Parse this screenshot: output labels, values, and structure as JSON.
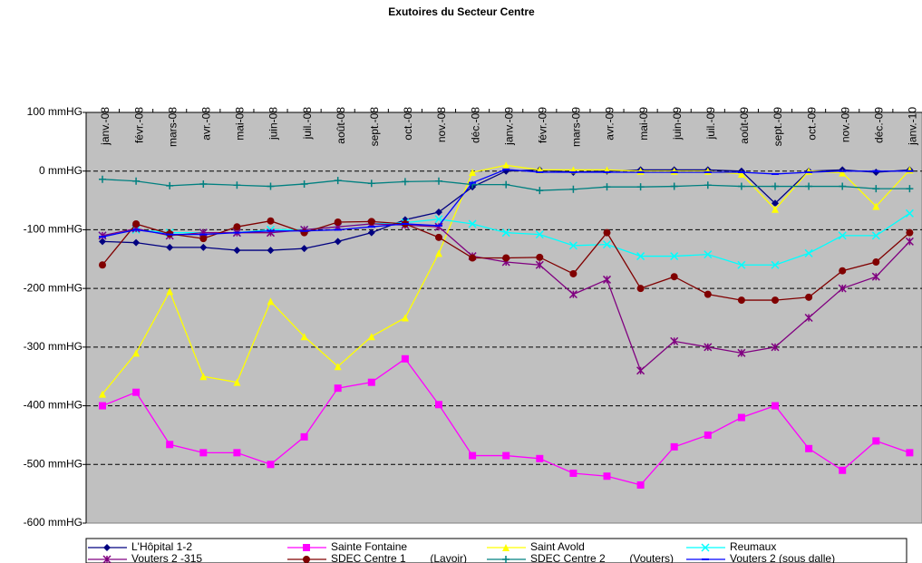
{
  "chart_data": {
    "type": "line",
    "title": "Exutoires du Secteur Centre",
    "categories": [
      "janv.-08",
      "févr.-08",
      "mars-08",
      "avr.-08",
      "mai-08",
      "juin-08",
      "juil.-08",
      "août-08",
      "sept.-08",
      "oct.-08",
      "nov.-08",
      "déc.-08",
      "janv.-09",
      "févr.-09",
      "mars-09",
      "avr.-09",
      "mai-09",
      "juin-09",
      "juil.-09",
      "août-09",
      "sept.-09",
      "oct.-09",
      "nov.-09",
      "déc.-09",
      "janv.-10"
    ],
    "ylim": [
      -600,
      100
    ],
    "yticks": [
      {
        "value": -600,
        "label": "-600 mmHG"
      },
      {
        "value": -500,
        "label": "-500 mmHG"
      },
      {
        "value": -400,
        "label": "-400 mmHG"
      },
      {
        "value": -300,
        "label": "-300 mmHG"
      },
      {
        "value": -200,
        "label": "-200 mmHG"
      },
      {
        "value": -100,
        "label": "-100 mmHG"
      },
      {
        "value": 0,
        "label": "0 mmHG"
      },
      {
        "value": 100,
        "label": "100 mmHG"
      }
    ],
    "grid": true,
    "legend": "bottom",
    "series": [
      {
        "name": "L'Hôpital 1-2",
        "color": "#000080",
        "marker": "diamond",
        "values": [
          -120,
          -122,
          -130,
          -130,
          -135,
          -135,
          -132,
          -120,
          -105,
          -83,
          -70,
          -27,
          0,
          2,
          -2,
          0,
          2,
          2,
          2,
          0,
          -55,
          0,
          2,
          -2,
          2
        ]
      },
      {
        "name": "Sainte Fontaine",
        "color": "#ff00ff",
        "marker": "square",
        "values": [
          -400,
          -377,
          -466,
          -480,
          -480,
          -500,
          -453,
          -370,
          -360,
          -320,
          -398,
          -485,
          -485,
          -490,
          -515,
          -520,
          -535,
          -470,
          -450,
          -420,
          -400,
          -473,
          -510,
          -460,
          -480
        ]
      },
      {
        "name": "Saint Avold",
        "color": "#ffff00",
        "marker": "triangle",
        "values": [
          -380,
          -310,
          -205,
          -350,
          -360,
          -222,
          -282,
          -333,
          -282,
          -250,
          -140,
          -2,
          10,
          2,
          2,
          2,
          0,
          0,
          0,
          -5,
          -65,
          0,
          -3,
          -60,
          2
        ]
      },
      {
        "name": "Reumaux",
        "color": "#00ffff",
        "marker": "x",
        "values": [
          -110,
          -100,
          -105,
          -105,
          -105,
          -100,
          -100,
          -95,
          -90,
          -88,
          -82,
          -90,
          -105,
          -108,
          -127,
          -125,
          -145,
          -145,
          -142,
          -160,
          -160,
          -140,
          -110,
          -110,
          -72
        ]
      },
      {
        "name": "Vouters 2 -315",
        "color": "#800080",
        "marker": "star",
        "values": [
          -110,
          -98,
          -110,
          -105,
          -105,
          -105,
          -100,
          -95,
          -90,
          -92,
          -95,
          -145,
          -155,
          -160,
          -210,
          -185,
          -340,
          -290,
          -300,
          -310,
          -300,
          -250,
          -200,
          -180,
          -120
        ]
      },
      {
        "name": "SDEC Centre 1        (Lavoir)",
        "color": "#800000",
        "marker": "circle",
        "values": [
          -160,
          -90,
          -107,
          -115,
          -95,
          -85,
          -105,
          -87,
          -86,
          -90,
          -113,
          -148,
          -148,
          -147,
          -175,
          -105,
          -200,
          -180,
          -210,
          -220,
          -220,
          -215,
          -170,
          -155,
          -105
        ]
      },
      {
        "name": "SDEC Centre 2        (Vouters)",
        "color": "#008080",
        "marker": "plus",
        "values": [
          -14,
          -17,
          -25,
          -22,
          -24,
          -26,
          -22,
          -16,
          -21,
          -18,
          -17,
          -23,
          -23,
          -33,
          -31,
          -27,
          -27,
          -26,
          -24,
          -26,
          -26,
          -26,
          -26,
          -30,
          -30
        ]
      },
      {
        "name": "Vouters 2 (sous dalle)",
        "color": "#0000ff",
        "marker": "dash",
        "values": [
          -112,
          -100,
          -108,
          -108,
          -105,
          -102,
          -102,
          -100,
          -95,
          -90,
          -93,
          -20,
          3,
          -2,
          -2,
          -2,
          -2,
          -2,
          -2,
          -2,
          -5,
          -2,
          0,
          0,
          0
        ]
      }
    ]
  }
}
